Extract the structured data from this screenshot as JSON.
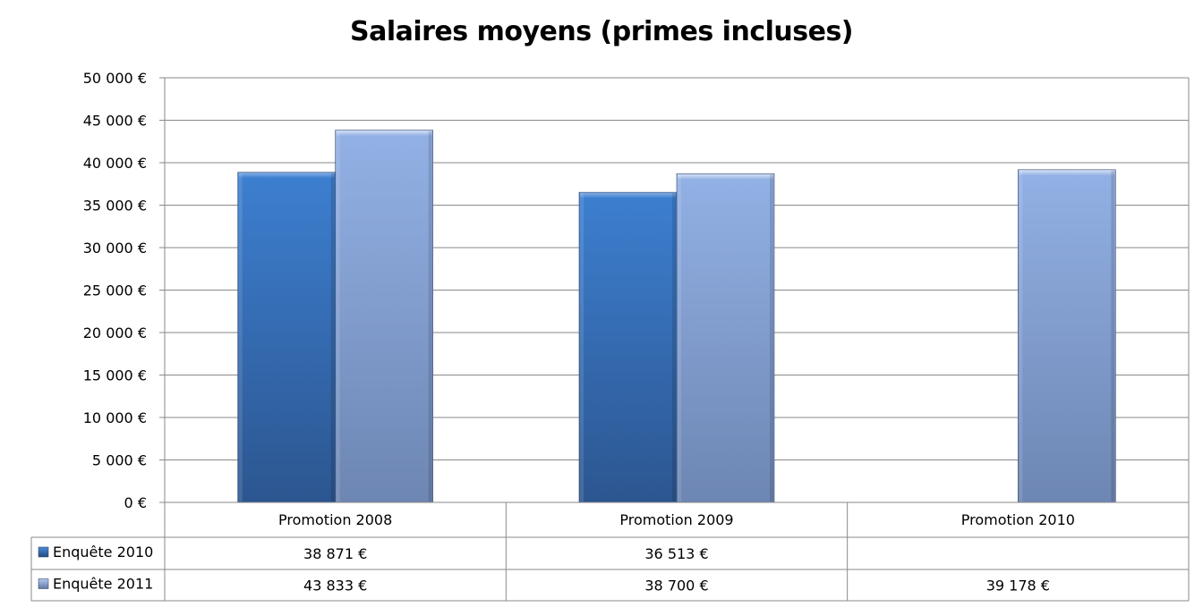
{
  "chart_data": {
    "type": "bar",
    "title": "Salaires moyens (primes incluses)",
    "categories": [
      "Promotion 2008",
      "Promotion 2009",
      "Promotion 2010"
    ],
    "series": [
      {
        "name": "Enquête 2010",
        "values": [
          38871,
          36513,
          null
        ],
        "labels": [
          "38 871 €",
          "36 513 €",
          ""
        ],
        "color": "#2f5f9e"
      },
      {
        "name": "Enquête 2011",
        "values": [
          43833,
          38700,
          39178
        ],
        "labels": [
          "43 833 €",
          "38 700 €",
          "39 178 €"
        ],
        "color": "#7f9bd0"
      }
    ],
    "ylim": [
      0,
      50000
    ],
    "yticks": [
      0,
      5000,
      10000,
      15000,
      20000,
      25000,
      30000,
      35000,
      40000,
      45000,
      50000
    ],
    "ytick_labels": [
      "0 €",
      "5 000 €",
      "10 000 €",
      "15 000 €",
      "20 000 €",
      "25 000 €",
      "30 000 €",
      "35 000 €",
      "40 000 €",
      "45 000 €",
      "50 000 €"
    ],
    "grid": true,
    "legend": "data-table"
  }
}
